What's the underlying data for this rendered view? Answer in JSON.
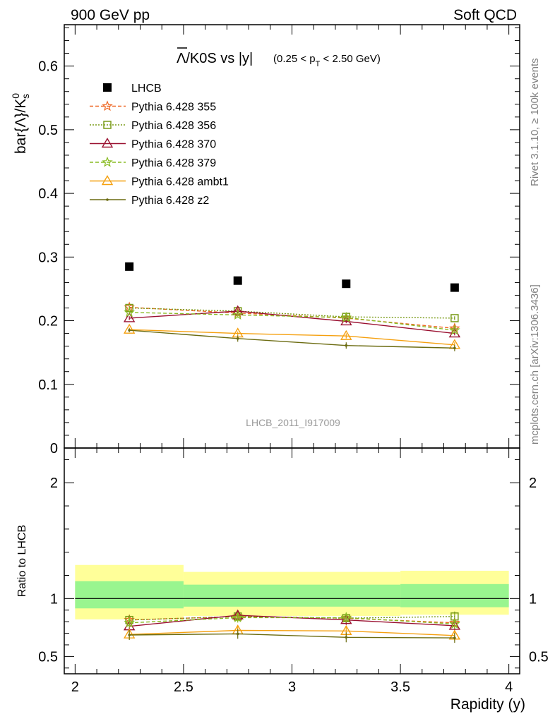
{
  "header": {
    "left": "900 GeV pp",
    "right": "Soft QCD"
  },
  "side_labels": {
    "rivet": "Rivet 3.1.10, ≥ 100k events",
    "mcplots": "mcplots.cern.ch [arXiv:1306.3436]"
  },
  "watermark": "LHCB_2011_I917009",
  "plot_title": {
    "main": "Λ/K0S vs |y|",
    "overbar_char": "Λ",
    "cut_pre": "(0.25 < p",
    "cut_sub": "T",
    "cut_post": " < 2.50 GeV)"
  },
  "chart_data": [
    {
      "type": "line",
      "panel": "main",
      "ylabel_pre": "bar{Λ}/K",
      "ylabel_sup": "0",
      "ylabel_sub": "s",
      "ylim": [
        0,
        0.665
      ],
      "yticks": [
        0,
        0.1,
        0.2,
        0.3,
        0.4,
        0.5,
        0.6
      ],
      "ytick_labels": [
        "0",
        "0.1",
        "0.2",
        "0.3",
        "0.4",
        "0.5",
        "0.6"
      ],
      "x": [
        2.25,
        2.75,
        3.25,
        3.75
      ],
      "data": {
        "name": "LHCB",
        "values": [
          0.285,
          0.263,
          0.258,
          0.252
        ],
        "color": "#000000"
      },
      "series": [
        {
          "name": "Pythia 6.428 355",
          "values": [
            0.221,
            0.212,
            0.204,
            0.188
          ],
          "errors": [
            0.003,
            0.003,
            0.003,
            0.003
          ],
          "color": "#ee6622",
          "dash": "5,3",
          "marker": "star"
        },
        {
          "name": "Pythia 6.428 356",
          "values": [
            0.22,
            0.215,
            0.206,
            0.204
          ],
          "errors": [
            0.003,
            0.003,
            0.003,
            0.003
          ],
          "color": "#7a9b18",
          "dash": "2,2",
          "marker": "square"
        },
        {
          "name": "Pythia 6.428 370",
          "values": [
            0.204,
            0.215,
            0.199,
            0.18
          ],
          "errors": [
            0.003,
            0.003,
            0.003,
            0.003
          ],
          "color": "#9a1030",
          "dash": "",
          "marker": "triangle"
        },
        {
          "name": "Pythia 6.428 379",
          "values": [
            0.213,
            0.209,
            0.205,
            0.185
          ],
          "errors": [
            0.003,
            0.003,
            0.003,
            0.003
          ],
          "color": "#88bb22",
          "dash": "5,3",
          "marker": "star"
        },
        {
          "name": "Pythia 6.428 ambt1",
          "values": [
            0.186,
            0.18,
            0.176,
            0.162
          ],
          "errors": [
            0.003,
            0.003,
            0.004,
            0.004
          ],
          "color": "#f5a00f",
          "dash": "",
          "marker": "triangle"
        },
        {
          "name": "Pythia 6.428 z2",
          "values": [
            0.185,
            0.172,
            0.161,
            0.157
          ],
          "errors": [
            0.003,
            0.005,
            0.005,
            0.005
          ],
          "color": "#6b6b10",
          "dash": "",
          "marker": "dot"
        }
      ]
    },
    {
      "type": "line",
      "panel": "ratio",
      "ylabel": "Ratio to LHCB",
      "xlabel": "Rapidity (y)",
      "xlim": [
        1.95,
        4.05
      ],
      "xticks": [
        2,
        2.5,
        3,
        3.5,
        4
      ],
      "xtick_labels": [
        "2",
        "2.5",
        "3",
        "3.5",
        "4"
      ],
      "ylim": [
        0.35,
        2.3
      ],
      "yticks": [
        0.5,
        1,
        2
      ],
      "ytick_labels": [
        "0.5",
        "1",
        "2"
      ],
      "bands": [
        {
          "x_range": [
            2.0,
            2.5
          ],
          "inner": [
            0.915,
            1.15
          ],
          "outer": [
            0.82,
            1.29
          ]
        },
        {
          "x_range": [
            2.5,
            3.0
          ],
          "inner": [
            0.93,
            1.12
          ],
          "outer": [
            0.85,
            1.23
          ]
        },
        {
          "x_range": [
            3.0,
            3.5
          ],
          "inner": [
            0.93,
            1.12
          ],
          "outer": [
            0.85,
            1.23
          ]
        },
        {
          "x_range": [
            3.5,
            4.0
          ],
          "inner": [
            0.925,
            1.125
          ],
          "outer": [
            0.86,
            1.24
          ]
        }
      ],
      "band_colors": {
        "inner": "#99f58f",
        "outer": "#ffff99"
      },
      "x": [
        2.25,
        2.75,
        3.25,
        3.75
      ],
      "series": [
        {
          "name": "Pythia 6.428 355",
          "values": [
            0.815,
            0.845,
            0.83,
            0.79
          ]
        },
        {
          "name": "Pythia 6.428 356",
          "values": [
            0.815,
            0.845,
            0.83,
            0.845
          ]
        },
        {
          "name": "Pythia 6.428 370",
          "values": [
            0.76,
            0.855,
            0.815,
            0.765
          ]
        },
        {
          "name": "Pythia 6.428 379",
          "values": [
            0.79,
            0.835,
            0.835,
            0.78
          ]
        },
        {
          "name": "Pythia 6.428 ambt1",
          "values": [
            0.69,
            0.725,
            0.72,
            0.68
          ]
        },
        {
          "name": "Pythia 6.428 z2",
          "values": [
            0.685,
            0.695,
            0.665,
            0.66
          ]
        }
      ]
    }
  ]
}
